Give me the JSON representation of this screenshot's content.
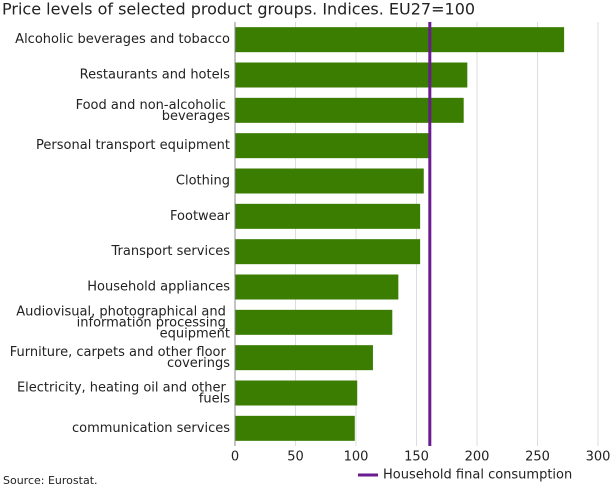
{
  "chart_data": {
    "type": "barh",
    "title": "Price levels of selected product groups. Indices. EU27=100",
    "categories": [
      "Alcoholic beverages and tobacco",
      "Restaurants and hotels",
      "Food and non-alcoholic beverages",
      "Personal transport equipment",
      "Clothing",
      "Footwear",
      "Transport services",
      "Household appliances",
      "Audiovisual, photographical and information processing equipment",
      "Furniture, carpets and other floor coverings",
      "Electricity, heating oil and other fuels",
      "communication services"
    ],
    "values": [
      272,
      192,
      189,
      160,
      156,
      153,
      153,
      135,
      130,
      114,
      101,
      99
    ],
    "color": "#3a7d00",
    "xlim": [
      0,
      300
    ],
    "xticks": [
      0,
      50,
      100,
      150,
      200,
      250,
      300
    ],
    "grid": true,
    "reference": {
      "name": "Household final consumption",
      "value": 161,
      "color": "#6a1b8f"
    },
    "source": "Source: Eurostat."
  }
}
